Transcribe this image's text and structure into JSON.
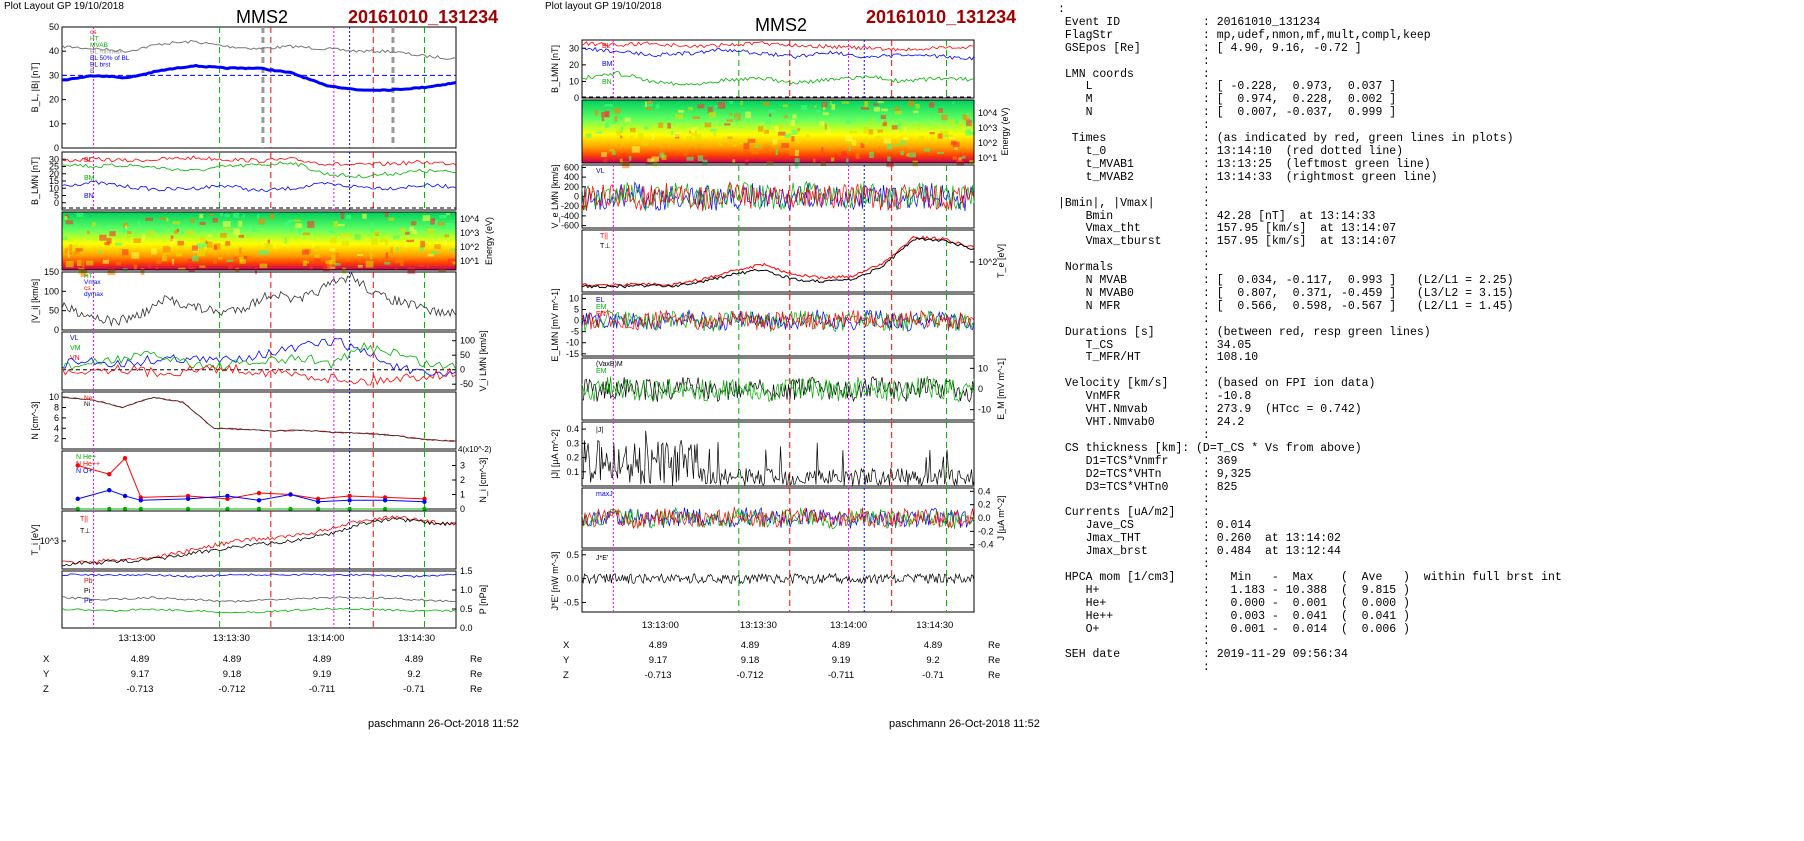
{
  "left": {
    "header_left": "Plot Layout GP 19/10/2018",
    "header_center": "MMS2",
    "header_right": "20161010_131234",
    "footer": "paschmann 26-Oct-2018 11:52"
  },
  "middle": {
    "header_left": "Plot layout GP 19/10/2018",
    "header_center": "MMS2",
    "header_right": "20161010_131234",
    "footer": "paschmann 26-Oct-2018 11:52"
  },
  "colors": {
    "title_red": "#a00000",
    "red": "#ff0000",
    "green": "#00b000",
    "blue": "#0000ff",
    "magenta": "#ff00ff",
    "black": "#000000"
  },
  "chart_data": [
    {
      "type": "line",
      "panel": "left-B",
      "ylabel": "B_L, |B| [nT]",
      "ylim": [
        0,
        50
      ],
      "y_ticks": [
        "0",
        "10",
        "20",
        "30",
        "40",
        "50"
      ],
      "legend": [
        "cs",
        "HT",
        "MVAB",
        "BL minmax",
        "BL 50% of BL",
        "BL brst",
        "B"
      ],
      "series": [
        {
          "name": "|B|",
          "values": [
            42,
            41,
            40,
            43,
            44,
            42,
            41,
            42,
            41,
            40,
            40,
            38,
            37
          ]
        },
        {
          "name": "BL brst",
          "values": [
            28,
            30,
            29,
            32,
            34,
            33,
            33,
            31,
            26,
            24,
            24,
            25,
            27
          ]
        },
        {
          "name": "BL 50% of BL",
          "values": [
            30,
            30,
            30,
            30,
            30,
            30,
            30,
            30,
            30,
            30,
            30,
            30,
            30
          ]
        }
      ]
    },
    {
      "type": "line",
      "panel": "left-BLMN",
      "ylabel": "B_LMN [nT]",
      "ylim": [
        -5,
        35
      ],
      "y_ticks": [
        "0",
        "5",
        "10",
        "15",
        "20",
        "25",
        "30"
      ],
      "legend": [
        "BL",
        "BM",
        "BN"
      ],
      "series": [
        {
          "name": "BL",
          "values": [
            29,
            30,
            29,
            30,
            31,
            30,
            29,
            30,
            27,
            26,
            27,
            28,
            27
          ]
        },
        {
          "name": "BM",
          "values": [
            27,
            25,
            26,
            24,
            22,
            25,
            26,
            28,
            20,
            18,
            20,
            22,
            21
          ]
        },
        {
          "name": "BN",
          "values": [
            12,
            14,
            11,
            9,
            10,
            12,
            8,
            10,
            13,
            11,
            10,
            12,
            11
          ]
        }
      ]
    },
    {
      "type": "heatmap",
      "panel": "left-ion-spectrogram",
      "ylabel": "Energy (eV)",
      "y_ticks": [
        "10^1",
        "10^2",
        "10^3",
        "10^4"
      ]
    },
    {
      "type": "line",
      "panel": "left-Vi",
      "ylabel": "|V_i| [km/s]",
      "ylim": [
        0,
        150
      ],
      "y_ticks": [
        "0",
        "50",
        "100",
        "150"
      ],
      "legend": [
        "HT",
        "Vmax",
        "cs",
        "dymax"
      ],
      "series": [
        {
          "name": "|Vi|",
          "values": [
            60,
            40,
            20,
            40,
            80,
            60,
            45,
            60,
            95,
            75,
            110,
            140,
            90,
            70,
            50,
            40
          ]
        }
      ]
    },
    {
      "type": "line",
      "panel": "left-ViLMN",
      "ylabel": "V_i LMN [km/s]",
      "ylim": [
        -70,
        130
      ],
      "y_ticks": [
        "-50",
        "0",
        "50",
        "100"
      ],
      "legend": [
        "VL",
        "VM",
        "VN"
      ],
      "series": [
        {
          "name": "VL",
          "values": [
            20,
            30,
            20,
            35,
            40,
            30,
            45,
            60,
            80,
            100,
            60,
            10,
            -20,
            -10
          ]
        },
        {
          "name": "VM",
          "values": [
            10,
            20,
            40,
            50,
            30,
            10,
            20,
            30,
            40,
            20,
            80,
            60,
            20,
            10
          ]
        },
        {
          "name": "VN",
          "values": [
            -5,
            0,
            5,
            -10,
            -5,
            5,
            0,
            -10,
            -20,
            -30,
            -40,
            -30,
            -20,
            -10
          ]
        }
      ]
    },
    {
      "type": "line",
      "panel": "left-N",
      "ylabel": "N [cm^-3]",
      "ylim": [
        0,
        11
      ],
      "y_ticks": [
        "2",
        "4",
        "6",
        "8",
        "10"
      ],
      "legend": [
        "Ne",
        "Ni"
      ],
      "series": [
        {
          "name": "Ni",
          "values": [
            10,
            9.5,
            8,
            10,
            9,
            4,
            3.8,
            3.5,
            3.6,
            3.2,
            3,
            2.6,
            1.8,
            1.5
          ]
        }
      ]
    },
    {
      "type": "scatter",
      "panel": "left-Ni-species",
      "ylabel": "N_i [cm^-3]",
      "ylim": [
        0,
        4
      ],
      "y_ticks": [
        "0",
        "1",
        "2",
        "3"
      ],
      "axis_annotation": "4(x10^-2)",
      "legend": [
        "N He+",
        "N He++",
        "N O+"
      ],
      "series": [
        {
          "name": "N He++",
          "values": [
            3,
            2.4,
            3.5,
            0.8,
            0.9,
            0.7,
            1.1,
            1.0,
            0.7,
            0.9,
            0.8,
            0.7
          ]
        },
        {
          "name": "N O+",
          "values": [
            0.7,
            1.3,
            0.9,
            0.6,
            0.7,
            0.9,
            0.6,
            1.0,
            0.5,
            0.6,
            0.6,
            0.5
          ]
        },
        {
          "name": "N He+",
          "values": [
            0,
            0,
            0,
            0,
            0,
            0,
            0,
            0,
            0,
            0,
            0,
            0
          ]
        }
      ]
    },
    {
      "type": "line",
      "panel": "left-Ti",
      "ylabel": "T_i [eV]",
      "y_ticks": [
        "10^3"
      ],
      "legend": [
        "T||",
        "T⊥"
      ],
      "series": [
        {
          "name": "T||",
          "values": [
            100,
            110,
            130,
            150,
            200,
            260,
            310,
            330,
            360,
            420,
            500,
            520,
            480,
            460
          ]
        },
        {
          "name": "T⊥",
          "values": [
            90,
            100,
            115,
            130,
            170,
            220,
            260,
            280,
            320,
            380,
            470,
            500,
            470,
            450
          ]
        }
      ]
    },
    {
      "type": "line",
      "panel": "left-P",
      "ylabel": "P [nPa]",
      "ylim": [
        0,
        1.5
      ],
      "y_ticks": [
        "0.0",
        "0.5",
        "1.0",
        "1.5"
      ],
      "legend": [
        "Pb",
        "Pi",
        "Pe"
      ],
      "series": [
        {
          "name": "Pb",
          "values": [
            1.4,
            1.4,
            1.4,
            1.35,
            1.4,
            1.4,
            1.4,
            1.4,
            1.35,
            1.4
          ]
        },
        {
          "name": "Pi",
          "values": [
            0.8,
            0.75,
            0.8,
            0.75,
            0.7,
            0.75,
            0.8,
            0.8,
            0.75,
            0.7
          ]
        },
        {
          "name": "Pe",
          "values": [
            0.5,
            0.45,
            0.5,
            0.45,
            0.4,
            0.45,
            0.5,
            0.5,
            0.45,
            0.45
          ]
        }
      ]
    },
    {
      "type": "line",
      "panel": "mid-BLMN",
      "ylabel": "B_LMN [nT]",
      "ylim": [
        0,
        35
      ],
      "y_ticks": [
        "0",
        "10",
        "20",
        "30"
      ],
      "legend": [
        "BL",
        "BM",
        "BN"
      ],
      "series": [
        {
          "name": "BL",
          "values": [
            33,
            32,
            33,
            31,
            32,
            33,
            32,
            31,
            30,
            29,
            30,
            31
          ]
        },
        {
          "name": "BM",
          "values": [
            30,
            28,
            26,
            27,
            29,
            27,
            25,
            28,
            24,
            26,
            25,
            24
          ]
        },
        {
          "name": "BN",
          "values": [
            12,
            15,
            10,
            8,
            11,
            12,
            9,
            11,
            13,
            10,
            12,
            11
          ]
        }
      ]
    },
    {
      "type": "heatmap",
      "panel": "mid-electron-spectrogram",
      "ylabel": "Energy (eV)",
      "y_ticks": [
        "10^1",
        "10^2",
        "10^3",
        "10^4"
      ]
    },
    {
      "type": "line",
      "panel": "mid-Ve",
      "ylabel": "V_e LMN [km/s]",
      "ylim": [
        -650,
        650
      ],
      "y_ticks": [
        "-600",
        "-400",
        "-200",
        "0",
        "200",
        "400",
        "600"
      ],
      "legend": [
        "VL"
      ],
      "series": [
        {
          "name": "VL",
          "values": [
            0,
            50,
            -60,
            80,
            -40,
            120,
            -80,
            100,
            -20,
            60,
            -50,
            30
          ]
        }
      ]
    },
    {
      "type": "line",
      "panel": "mid-Te",
      "ylabel": "T_e [eV]",
      "y_ticks": [
        "10^2"
      ],
      "legend": [
        "T||",
        "T⊥"
      ],
      "series": [
        {
          "name": "T||",
          "values": [
            30,
            28,
            32,
            30,
            45,
            70,
            90,
            60,
            50,
            55,
            95,
            170,
            165,
            140
          ]
        },
        {
          "name": "T⊥",
          "values": [
            25,
            24,
            27,
            26,
            38,
            60,
            75,
            45,
            40,
            45,
            85,
            165,
            160,
            135
          ]
        }
      ]
    },
    {
      "type": "line",
      "panel": "mid-E",
      "ylabel": "E_LMN [mV m^-1]",
      "ylim": [
        -16,
        12
      ],
      "y_ticks": [
        "-15",
        "-10",
        "-5",
        "0",
        "5",
        "10"
      ],
      "legend": [
        "EL",
        "EM",
        "EN"
      ]
    },
    {
      "type": "line",
      "panel": "mid-EM",
      "ylabel": "E_M [mV m^-1]",
      "ylim": [
        -15,
        15
      ],
      "y_ticks": [
        "-10",
        "0",
        "10"
      ],
      "legend": [
        "(VaxB)M",
        "EM"
      ]
    },
    {
      "type": "line",
      "panel": "mid-J",
      "ylabel": "|J| [μA m^-2]",
      "ylim": [
        0,
        0.45
      ],
      "y_ticks": [
        "0.1",
        "0.2",
        "0.3",
        "0.4"
      ],
      "legend": [
        "|J|"
      ]
    },
    {
      "type": "line",
      "panel": "mid-JLMN",
      "ylabel": "J [μA m^-2]",
      "ylim": [
        -0.45,
        0.45
      ],
      "y_ticks": [
        "-0.4",
        "-0.2",
        "0.0",
        "0.2",
        "0.4"
      ],
      "legend": [
        "maxJ"
      ]
    },
    {
      "type": "line",
      "panel": "mid-JE",
      "ylabel": "J*E' [nW m^-3]",
      "ylim": [
        -0.7,
        0.6
      ],
      "y_ticks": [
        "-0.5",
        "0.0",
        "0.5"
      ],
      "legend": [
        "J*E'"
      ]
    }
  ],
  "time_axis": {
    "ticks": [
      "13:13:00",
      "13:13:30",
      "13:14:00",
      "13:14:30"
    ]
  },
  "ephemeris": {
    "rows": [
      {
        "label": "X",
        "values": [
          "4.89",
          "4.89",
          "4.89",
          "4.89"
        ],
        "unit": "Re"
      },
      {
        "label": "Y",
        "values": [
          "9.17",
          "9.18",
          "9.19",
          "9.2"
        ],
        "unit": "Re"
      },
      {
        "label": "Z",
        "values": [
          "-0.713",
          "-0.712",
          "-0.711",
          "-0.71"
        ],
        "unit": "Re"
      }
    ]
  },
  "info": {
    "lines": [
      ":",
      " Event ID            : 20161010_131234",
      " FlagStr             : mp,udef,nmon,mf,mult,compl,keep",
      " GSEpos [Re]         : [ 4.90, 9.16, -0.72 ]",
      "                     :",
      " LMN coords          :",
      "    L                : [ -0.228,  0.973,  0.037 ]",
      "    M                : [  0.974,  0.228,  0.002 ]",
      "    N                : [  0.007, -0.037,  0.999 ]",
      "                     :",
      "  Times              : (as indicated by red, green lines in plots)",
      "    t_0              : 13:14:10  (red dotted line)",
      "    t_MVAB1          : 13:13:25  (leftmost green line)",
      "    t_MVAB2          : 13:14:33  (rightmost green line)",
      "                     :",
      "|Bmin|, |Vmax|       :",
      "    Bmin             : 42.28 [nT]  at 13:14:33",
      "    Vmax_tht         : 157.95 [km/s]  at 13:14:07",
      "    Vmax_tburst      : 157.95 [km/s]  at 13:14:07",
      "                     :",
      " Normals             :",
      "    N MVAB           : [  0.034, -0.117,  0.993 ]   (L2/L1 = 2.25)",
      "    N MVAB0          : [  0.807,  0.371, -0.459 ]   (L3/L2 = 3.15)",
      "    N MFR            : [  0.566,  0.598, -0.567 ]   (L2/L1 = 1.45)",
      "                     :",
      " Durations [s]       : (between red, resp green lines)",
      "    T_CS             : 34.05",
      "    T_MFR/HT         : 108.10",
      "                     :",
      " Velocity [km/s]     : (based on FPI ion data)",
      "    VnMFR            : -10.8",
      "    VHT.Nmvab        : 273.9  (HTcc = 0.742)",
      "    VHT.Nmvab0       : 24.2",
      "                     :",
      " CS thickness [km]: (D=T_CS * Vs from above)",
      "    D1=TCS*Vnmfr     : 369",
      "    D2=TCS*VHTn      : 9,325",
      "    D3=TCS*VHTn0     : 825",
      "                     :",
      " Currents [uA/m2]    :",
      "    Jave_CS          : 0.014",
      "    Jmax_THT         : 0.260  at 13:14:02",
      "    Jmax_brst        : 0.484  at 13:12:44",
      "                     :",
      " HPCA mom [1/cm3]    :   Min   -  Max    (  Ave   )  within full brst int",
      "    H+               :   1.183 - 10.388  (  9.815 )",
      "    He+              :   0.000 -  0.001  (  0.000 )",
      "    He++             :   0.003 -  0.041  (  0.041 )",
      "    O+               :   0.001 -  0.014  (  0.006 )",
      "                     :",
      " SEH date            : 2019-11-29 09:56:34",
      "                     :"
    ]
  }
}
